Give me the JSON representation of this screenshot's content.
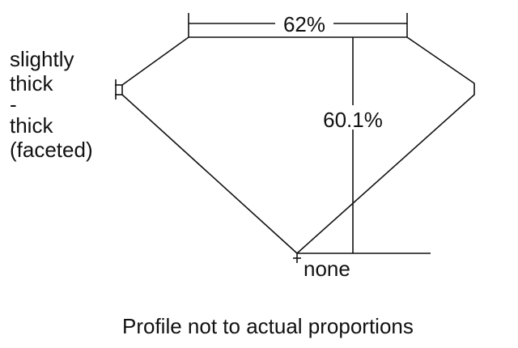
{
  "diagram": {
    "table_label": "62%",
    "depth_label": "60.1%",
    "culet_label": "none",
    "girdle_label_lines": [
      "slightly",
      "thick",
      "-",
      "thick",
      "(faceted)"
    ],
    "footer": "Profile not to actual proportions",
    "line_color": "#111111"
  }
}
